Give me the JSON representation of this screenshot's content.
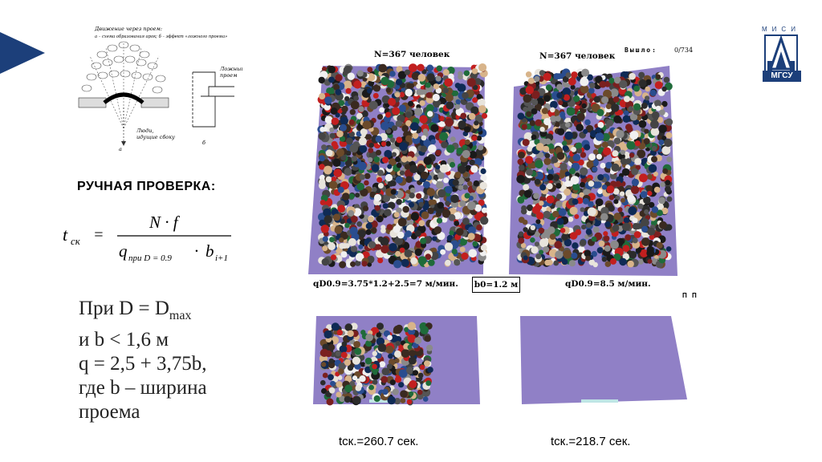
{
  "diagram": {
    "title_line1": "Движение через проем:",
    "title_line2": "а – схема образования арок; б – эффект «ложного проема»",
    "label_a": "а",
    "label_b": "б",
    "false_opening_line1": "Ложный",
    "false_opening_line2": "проем",
    "people_side_line1": "Люди,",
    "people_side_line2": "идущие сбоку"
  },
  "heading": "РУЧНАЯ ПРОВЕРКА:",
  "formula": {
    "lhs": "t",
    "lhs_sub": "ск",
    "equals": "=",
    "numerator": "N · f",
    "denominator_q": "q",
    "denominator_q_sub": "при D = 0.9",
    "denominator_dot": "·",
    "denominator_b": "b",
    "denominator_b_sub": "i+1"
  },
  "conditions": [
    "При D = D",
    "и b < 1,6 м",
    "q = 2,5 + 3,75b,",
    "где b – ширина",
    " проема"
  ],
  "conditions_sub_max": "max",
  "simulation": {
    "left_title": "N=367 человек",
    "right_title": "N=367 человек",
    "counter_label": "Вышло:",
    "counter_value": "0/734",
    "left_formula": "qD0.9=3.75*1.2+2.5=7 м/мин.",
    "b0": "b0=1.2 м",
    "right_formula": "qD0.9=8.5 м/мин.",
    "pp": "П П",
    "left_time": "tск.=260.7 сек.",
    "right_time": "tск.=218.7 сек."
  },
  "logo": {
    "top_text": "МИСИ",
    "bottom_text": "МГСУ"
  },
  "colors": {
    "accent_arrow": "#1c3f7a",
    "floor": "#9080c6",
    "floor_light": "#a596d6"
  }
}
